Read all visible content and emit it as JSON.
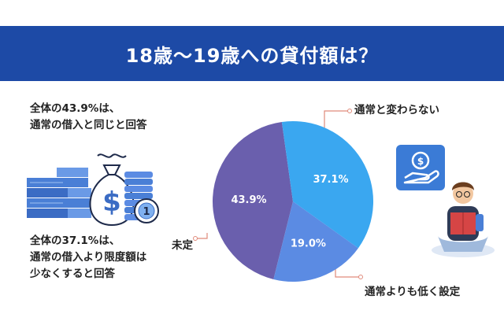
{
  "title": "18歳～19歳への貸付額は？",
  "notes": [
    {
      "line1": "全体の43.9%は、",
      "line2": "通常の借入と同じと回答"
    },
    {
      "line1": "全体の37.1%は、",
      "line2": "通常の借入より限度額は",
      "line3": "少なくすると回答"
    }
  ],
  "colors": {
    "banner": "#1d4aa6",
    "same": "#6a5fad",
    "lower": "#3aa7f0",
    "undecided": "#5b8be3",
    "leader": "#e08a7a"
  },
  "icons": [
    "money-bag-icon",
    "coin-stack-icon",
    "banknote-stack-icon",
    "hand-coin-icon",
    "reading-student-icon"
  ],
  "chart_data": {
    "type": "pie",
    "categories": [
      "通常と変わらない",
      "通常よりも低く設定",
      "未定"
    ],
    "values": [
      43.9,
      37.1,
      19.0
    ],
    "data_labels": [
      "43.9%",
      "37.1%",
      "19.0%"
    ]
  }
}
